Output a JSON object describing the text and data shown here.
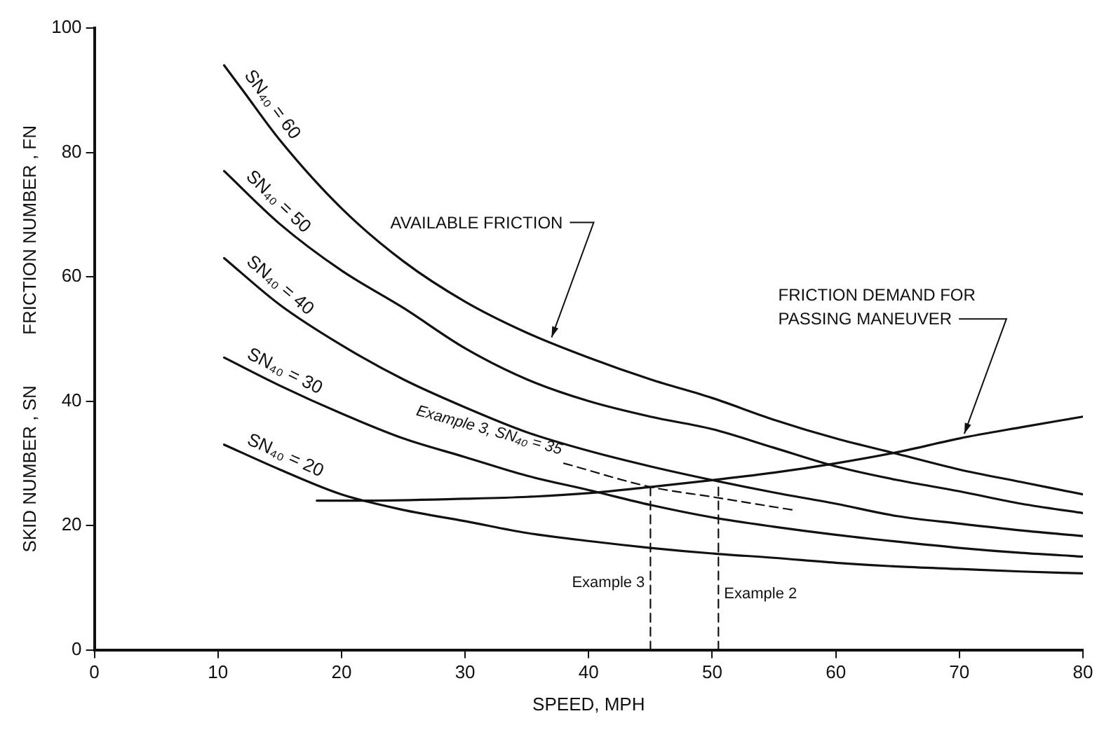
{
  "chart_data": {
    "type": "line",
    "xlabel": "SPEED, MPH",
    "ylabel": "SKID NUMBER , SN          FRICTION NUMBER , FN",
    "xlim": [
      0,
      80
    ],
    "ylim": [
      0,
      100
    ],
    "xticks": [
      0,
      10,
      20,
      30,
      40,
      50,
      60,
      70,
      80
    ],
    "yticks": [
      0,
      20,
      40,
      60,
      80,
      100
    ],
    "grid": false,
    "legend": false,
    "marker": "none",
    "series": [
      {
        "name": "SN₄₀ = 60",
        "color": "#111111",
        "line_style": "solid",
        "x": [
          10.5,
          12,
          15,
          20,
          25,
          30,
          35,
          40,
          45,
          50,
          55,
          60,
          65,
          70,
          75,
          80
        ],
        "values": [
          94,
          90,
          82,
          71,
          62.5,
          56,
          51,
          47,
          43.5,
          40.5,
          37,
          34,
          31.5,
          29,
          27,
          25
        ]
      },
      {
        "name": "SN₄₀ = 50",
        "color": "#111111",
        "line_style": "solid",
        "x": [
          10.5,
          15,
          20,
          25,
          30,
          35,
          40,
          45,
          50,
          55,
          60,
          65,
          70,
          75,
          80
        ],
        "values": [
          77,
          68.5,
          61,
          55,
          48.5,
          43.5,
          40,
          37.5,
          35.5,
          32.5,
          29.5,
          27.3,
          25.5,
          23.5,
          22
        ]
      },
      {
        "name": "SN₄₀ = 40",
        "color": "#111111",
        "line_style": "solid",
        "x": [
          10.5,
          15,
          20,
          25,
          30,
          35,
          40,
          45,
          50,
          55,
          60,
          65,
          70,
          75,
          80
        ],
        "values": [
          63,
          55.5,
          49,
          43.5,
          39,
          35,
          32,
          29.5,
          27.3,
          25.3,
          23.5,
          21.5,
          20.3,
          19.2,
          18.3
        ]
      },
      {
        "name": "SN₄₀ = 30",
        "color": "#111111",
        "line_style": "solid",
        "x": [
          10.5,
          15,
          20,
          25,
          30,
          35,
          40,
          45,
          50,
          55,
          60,
          65,
          70,
          75,
          80
        ],
        "values": [
          47,
          42.5,
          38,
          34,
          31,
          28,
          25.7,
          23.3,
          21.3,
          19.8,
          18.5,
          17.4,
          16.4,
          15.6,
          15
        ]
      },
      {
        "name": "SN₄₀ = 20",
        "color": "#111111",
        "line_style": "solid",
        "x": [
          10.5,
          15,
          20,
          25,
          30,
          35,
          40,
          45,
          50,
          55,
          60,
          65,
          70,
          75,
          80
        ],
        "values": [
          33,
          29,
          25,
          22.5,
          20.7,
          18.8,
          17.5,
          16.4,
          15.5,
          14.8,
          14,
          13.4,
          13,
          12.6,
          12.3
        ]
      },
      {
        "color": "#111111",
        "line_style": "solid",
        "x": [
          18,
          22,
          30,
          35,
          40,
          45,
          50,
          55,
          60,
          65,
          70,
          75,
          80
        ],
        "values": [
          24,
          24,
          24.3,
          24.6,
          25.2,
          26.2,
          27.3,
          28.5,
          30,
          31.8,
          34,
          35.8,
          37.5
        ]
      },
      {
        "name": "Example 3, SN₄₀ = 35",
        "color": "#111111",
        "line_style": "dashed",
        "x": [
          38,
          45,
          50,
          56.5
        ],
        "values": [
          30,
          26.2,
          24.6,
          22.5
        ]
      },
      {
        "name": "Example 3",
        "color": "#111111",
        "line_style": "dashed",
        "x": [
          45,
          45
        ],
        "values": [
          0,
          26.2
        ]
      },
      {
        "name": "Example 2",
        "color": "#111111",
        "line_style": "dashed",
        "x": [
          50.5,
          50.5
        ],
        "values": [
          0,
          27.3
        ]
      }
    ],
    "annotations": [
      {
        "text": "AVAILABLE FRICTION",
        "x": 37,
        "y": 49.8
      },
      {
        "text": "FRICTION DEMAND FOR PASSING MANEUVER",
        "x": 70.4,
        "y": 34.3
      }
    ]
  }
}
